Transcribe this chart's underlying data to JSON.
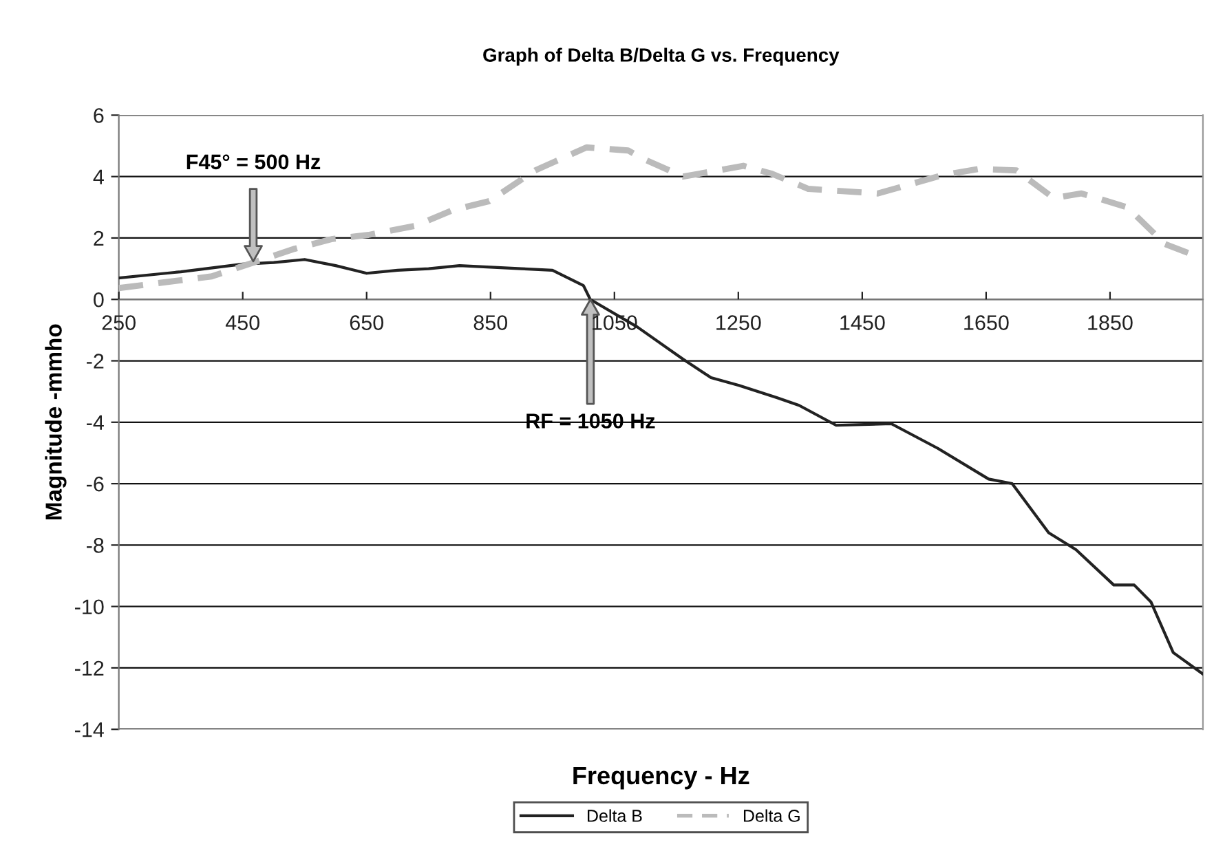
{
  "chart_data": {
    "type": "line",
    "title": "Graph of Delta B/Delta G vs. Frequency",
    "xlabel": "Frequency - Hz",
    "ylabel": "Magnitude -mmho",
    "xlim": [
      250,
      2000
    ],
    "xticks": [
      250,
      450,
      650,
      850,
      1050,
      1250,
      1450,
      1650,
      1850
    ],
    "ylim": [
      -14,
      6
    ],
    "yticks": [
      -14,
      -12,
      -10,
      -8,
      -6,
      -4,
      -2,
      0,
      2,
      4,
      6
    ],
    "grid": "y",
    "legend": "bottom",
    "marker": "none",
    "annotations": [
      "F45° = 500 Hz",
      "RF = 1050 Hz"
    ],
    "series": [
      {
        "name": "Delta B",
        "color": "#222222",
        "line_style": "solid",
        "x": [
          250,
          350,
          450,
          500,
          550,
          600,
          650,
          700,
          750,
          800,
          850,
          900,
          950,
          1000,
          1011,
          1087,
          1161,
          1206,
          1251,
          1312,
          1348,
          1408,
          1497,
          1572,
          1654,
          1692,
          1751,
          1795,
          1856,
          1889,
          1916,
          1952,
          2000
        ],
        "values": [
          0.7,
          0.9,
          1.15,
          1.2,
          1.3,
          1.1,
          0.85,
          0.95,
          1.0,
          1.1,
          1.05,
          1.0,
          0.95,
          0.45,
          0,
          -0.9,
          -1.95,
          -2.55,
          -2.8,
          -3.2,
          -3.45,
          -4.1,
          -4.05,
          -4.85,
          -5.85,
          -6.0,
          -7.6,
          -8.15,
          -9.3,
          -9.3,
          -9.85,
          -11.5,
          -12.2
        ]
      },
      {
        "name": "Delta G",
        "color": "#bbbbbb",
        "line_style": "dashed",
        "x": [
          250,
          400,
          467,
          534,
          595,
          653,
          729,
          788,
          848,
          922,
          1005,
          1072,
          1094,
          1161,
          1258,
          1303,
          1363,
          1475,
          1580,
          1639,
          1699,
          1759,
          1804,
          1878,
          1939,
          1997
        ],
        "values": [
          0.37,
          0.75,
          1.2,
          1.65,
          1.97,
          2.1,
          2.4,
          2.9,
          3.2,
          4.2,
          4.95,
          4.85,
          4.6,
          4.0,
          4.35,
          4.1,
          3.6,
          3.45,
          4.05,
          4.25,
          4.2,
          3.3,
          3.45,
          3.0,
          1.8,
          1.35
        ]
      }
    ]
  }
}
